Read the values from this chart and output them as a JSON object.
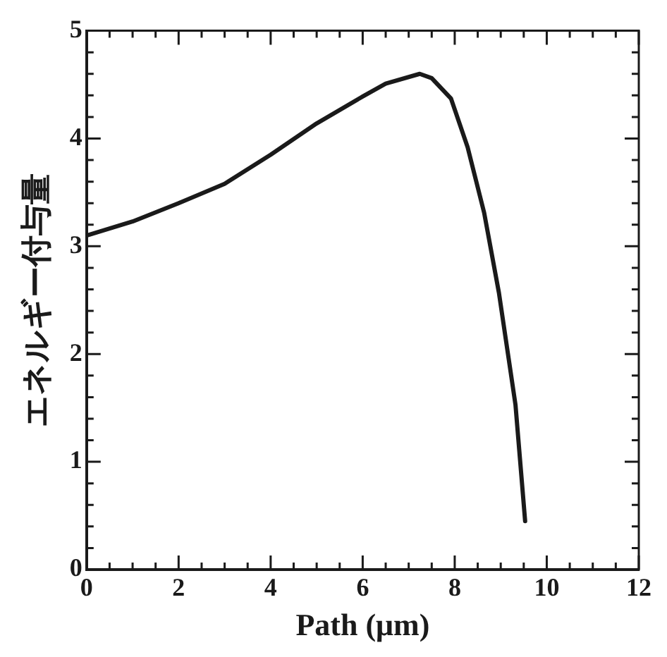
{
  "chart_data": {
    "type": "line",
    "xlabel": "Path (μm)",
    "ylabel": "エネルギー付与量",
    "xlim": [
      0,
      12
    ],
    "ylim": [
      0,
      5
    ],
    "xticks": [
      0,
      {
        "value": 0.5,
        "label": null
      },
      2,
      {
        "value": 1,
        "label": null
      },
      {
        "value": 1.5,
        "label": null
      },
      {
        "value": 2.5,
        "label": null
      },
      {
        "value": 3,
        "label": null
      },
      {
        "value": 3.5,
        "label": null
      },
      4,
      {
        "value": 4.5,
        "label": null
      },
      {
        "value": 5,
        "label": null
      },
      {
        "value": 5.5,
        "label": null
      },
      6,
      {
        "value": 6.5,
        "label": null
      },
      {
        "value": 7,
        "label": null
      },
      {
        "value": 7.5,
        "label": null
      },
      8,
      {
        "value": 8.5,
        "label": null
      },
      {
        "value": 9,
        "label": null
      },
      {
        "value": 9.5,
        "label": null
      },
      10,
      {
        "value": 10.5,
        "label": null
      },
      {
        "value": 11,
        "label": null
      },
      {
        "value": 11.5,
        "label": null
      },
      12
    ],
    "yticks": [
      0,
      {
        "value": 0.2,
        "label": null
      },
      {
        "value": 0.4,
        "label": null
      },
      {
        "value": 0.6,
        "label": null
      },
      {
        "value": 0.8,
        "label": null
      },
      1,
      {
        "value": 1.2,
        "label": null
      },
      {
        "value": 1.4,
        "label": null
      },
      {
        "value": 1.6,
        "label": null
      },
      {
        "value": 1.8,
        "label": null
      },
      2,
      {
        "value": 2.2,
        "label": null
      },
      {
        "value": 2.4,
        "label": null
      },
      {
        "value": 2.6,
        "label": null
      },
      {
        "value": 2.8,
        "label": null
      },
      3,
      {
        "value": 3.2,
        "label": null
      },
      {
        "value": 3.4,
        "label": null
      },
      {
        "value": 3.6,
        "label": null
      },
      {
        "value": 3.8,
        "label": null
      },
      4,
      {
        "value": 4.2,
        "label": null
      },
      {
        "value": 4.4,
        "label": null
      },
      {
        "value": 4.6,
        "label": null
      },
      {
        "value": 4.8,
        "label": null
      },
      5
    ],
    "grid": false,
    "legend": false,
    "marker": "none",
    "line_style": "solid",
    "series": [
      {
        "color": "#1a1a1a",
        "x": [
          0,
          1,
          2,
          3,
          4,
          5,
          6,
          6.5,
          7.24,
          7.5,
          7.92,
          8.28,
          8.64,
          8.96,
          9.32,
          9.53
        ],
        "values": [
          3.1,
          3.23,
          3.4,
          3.58,
          3.85,
          4.14,
          4.39,
          4.51,
          4.6,
          4.56,
          4.37,
          3.92,
          3.31,
          2.57,
          1.53,
          0.45
        ]
      }
    ]
  }
}
